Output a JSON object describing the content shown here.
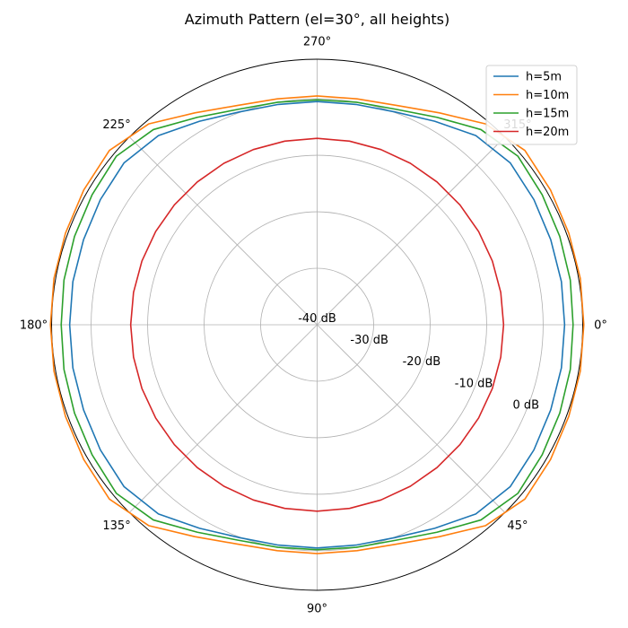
{
  "chart_data": {
    "type": "line",
    "projection": "polar",
    "title": "Azimuth Pattern (el=30°, all heights)",
    "theta_direction": "clockwise",
    "theta_zero_location": "right",
    "angle_ticks": [
      "0°",
      "45°",
      "90°",
      "135°",
      "180°",
      "225°",
      "270°",
      "315°"
    ],
    "angle_tick_values": [
      0,
      45,
      90,
      135,
      180,
      225,
      270,
      315
    ],
    "radial_ticks": [
      "-40 dB",
      "-30 dB",
      "-20 dB",
      "-10 dB",
      "0 dB"
    ],
    "radial_tick_values": [
      -40,
      -30,
      -20,
      -10,
      0
    ],
    "rlim": [
      -40,
      7
    ],
    "grid": true,
    "legend_position": "top-right",
    "theta": [
      0,
      10,
      20,
      30,
      40,
      50,
      60,
      70,
      80,
      90,
      100,
      110,
      120,
      130,
      140,
      150,
      160,
      170,
      180,
      190,
      200,
      210,
      220,
      230,
      240,
      250,
      260,
      270,
      280,
      290,
      300,
      310,
      320,
      330,
      340,
      350,
      360
    ],
    "series": [
      {
        "name": "h=5m",
        "color": "#1f77b4",
        "values": [
          3.8,
          3.9,
          4.0,
          4.3,
          4.6,
          3.7,
          1.6,
          0.1,
          -0.4,
          -0.5,
          -0.4,
          0.1,
          1.6,
          3.7,
          4.6,
          4.3,
          4.0,
          3.9,
          3.8,
          3.9,
          4.0,
          4.3,
          4.6,
          3.7,
          1.6,
          0.1,
          -0.4,
          -0.5,
          -0.4,
          0.1,
          1.6,
          3.7,
          4.6,
          4.3,
          4.0,
          3.9,
          3.8
        ]
      },
      {
        "name": "h=10m",
        "color": "#ff7f0e",
        "values": [
          7.2,
          7.3,
          7.4,
          7.7,
          8.0,
          6.4,
          3.3,
          1.3,
          0.6,
          0.5,
          0.6,
          1.3,
          3.3,
          6.4,
          8.0,
          7.7,
          7.4,
          7.3,
          7.2,
          7.3,
          7.4,
          7.7,
          8.0,
          6.4,
          3.3,
          1.3,
          0.6,
          0.5,
          0.6,
          1.3,
          3.3,
          6.4,
          8.0,
          7.7,
          7.4,
          7.3,
          7.2
        ]
      },
      {
        "name": "h=15m",
        "color": "#2ca02c",
        "values": [
          5.3,
          5.5,
          5.7,
          6.0,
          6.4,
          5.1,
          2.4,
          0.6,
          0.0,
          -0.2,
          0.0,
          0.6,
          2.4,
          5.1,
          6.4,
          6.0,
          5.7,
          5.5,
          5.3,
          5.5,
          5.7,
          6.0,
          6.4,
          5.1,
          2.4,
          0.6,
          0.0,
          -0.2,
          0.0,
          0.6,
          2.4,
          5.1,
          6.4,
          6.0,
          5.7,
          5.5,
          5.3
        ]
      },
      {
        "name": "h=20m",
        "color": "#d62728",
        "values": [
          -7.0,
          -7.0,
          -7.0,
          -7.0,
          -7.0,
          -7.0,
          -7.0,
          -7.0,
          -7.0,
          -7.0,
          -7.0,
          -7.0,
          -7.0,
          -7.0,
          -7.0,
          -7.0,
          -7.0,
          -7.0,
          -7.0,
          -7.0,
          -7.0,
          -7.0,
          -7.0,
          -7.0,
          -7.0,
          -7.0,
          -7.0,
          -7.0,
          -7.0,
          -7.0,
          -7.0,
          -7.0,
          -7.0,
          -7.0,
          -7.0,
          -7.0,
          -7.0
        ]
      }
    ]
  }
}
